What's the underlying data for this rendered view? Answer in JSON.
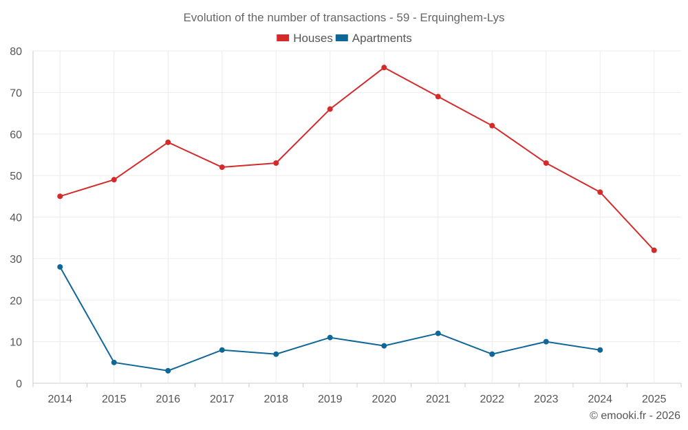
{
  "chart_data": {
    "type": "line",
    "title": "Evolution of the number of transactions - 59 - Erquinghem-Lys",
    "xlabel": "",
    "ylabel": "",
    "categories": [
      "2014",
      "2015",
      "2016",
      "2017",
      "2018",
      "2019",
      "2020",
      "2021",
      "2022",
      "2023",
      "2024",
      "2025"
    ],
    "ylim": [
      0,
      80
    ],
    "yticks": [
      0,
      10,
      20,
      30,
      40,
      50,
      60,
      70,
      80
    ],
    "grid": true,
    "legend_position": "top-center",
    "series": [
      {
        "name": "Houses",
        "color": "#d42a2a",
        "values": [
          45,
          49,
          58,
          52,
          53,
          66,
          76,
          69,
          62,
          53,
          46,
          32
        ]
      },
      {
        "name": "Apartments",
        "color": "#0f6699",
        "values": [
          28,
          5,
          3,
          8,
          7,
          11,
          9,
          12,
          7,
          10,
          8,
          null
        ]
      }
    ]
  },
  "credit": "© emooki.fr - 2026"
}
